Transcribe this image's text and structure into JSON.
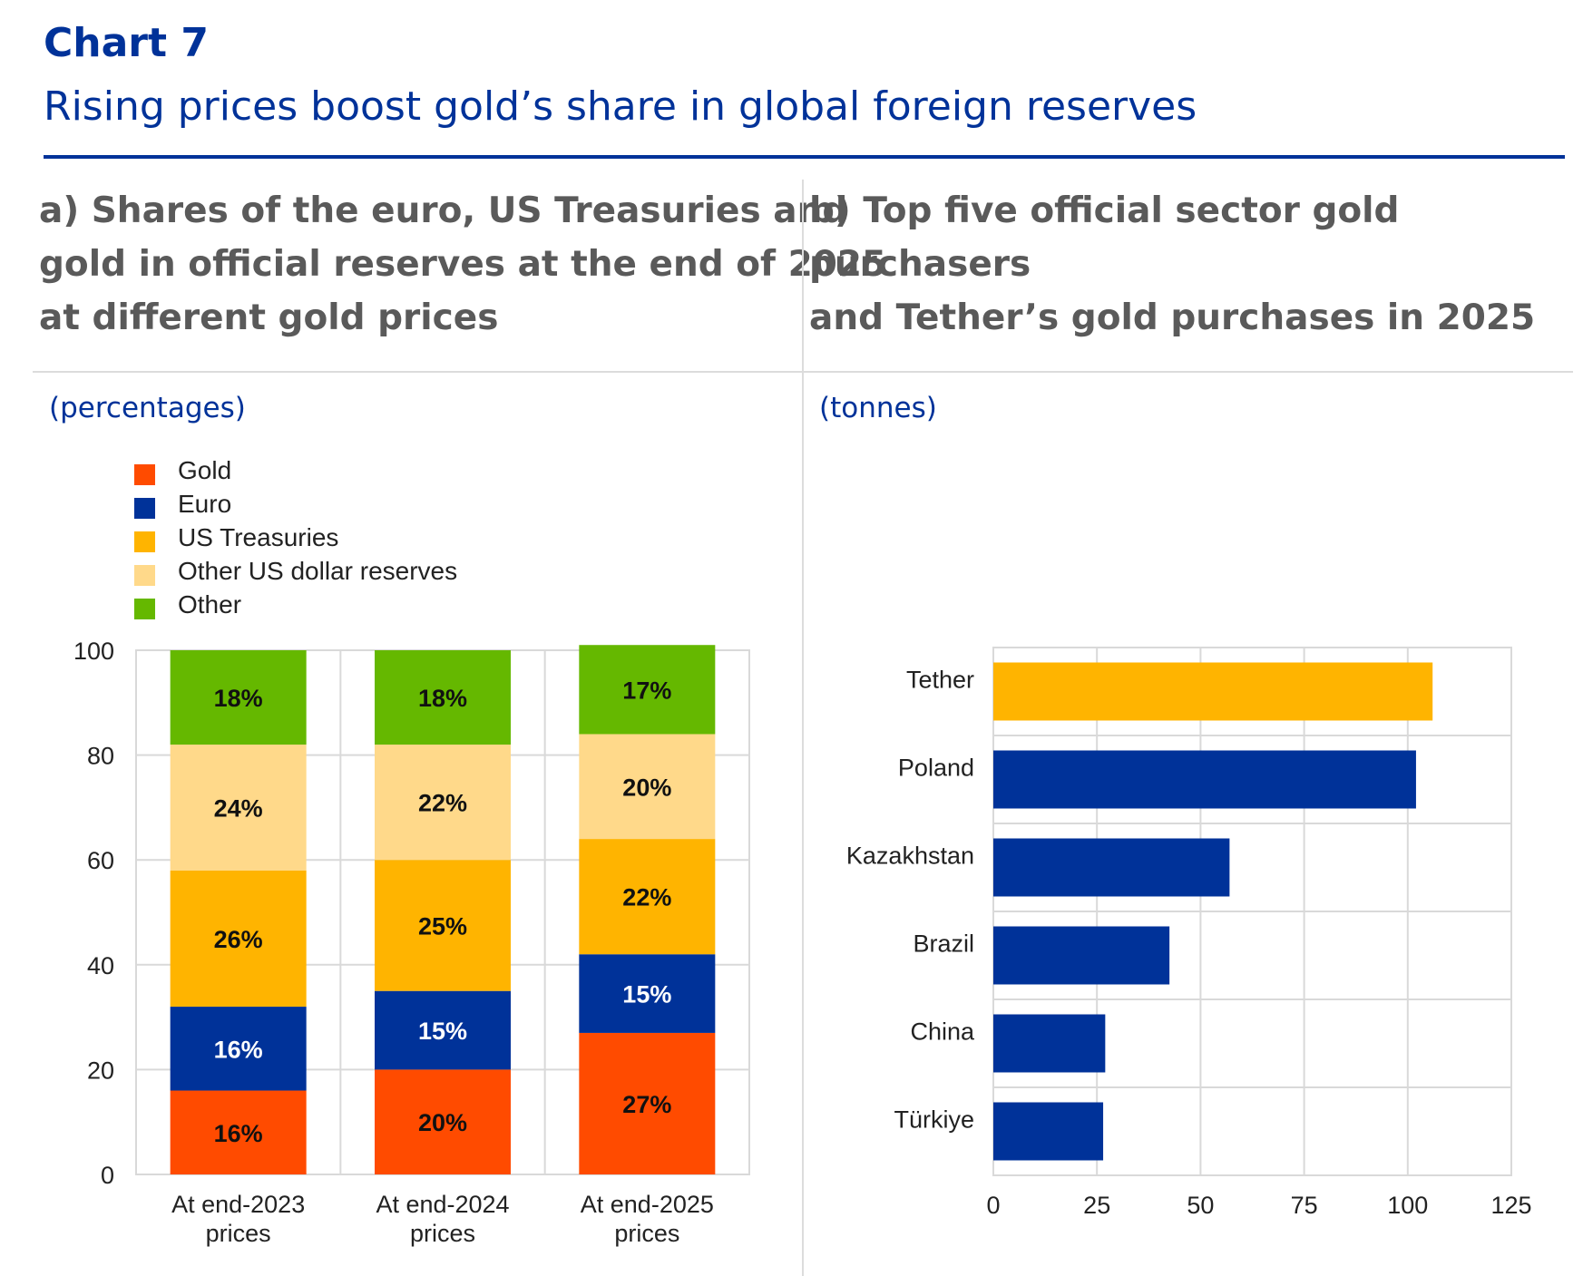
{
  "header": {
    "chart_no": "Chart 7",
    "title": "Rising prices boost gold’s share in global foreign reserves"
  },
  "colors": {
    "brand": "#003299",
    "gold": "#FF4B00",
    "euro": "#003299",
    "us_treasuries": "#FFB400",
    "other_usd": "#FFD98A",
    "other": "#65B800",
    "tether": "#FFB400",
    "country": "#003299"
  },
  "panel_a": {
    "title_lines": [
      "a) Shares of the euro, US Treasuries and",
      "gold in official reserves at the end of 2025",
      "at different gold prices"
    ],
    "unit": "(percentages)"
  },
  "panel_b": {
    "title_lines": [
      "b) Top five official sector gold purchasers",
      "and Tether’s gold purchases in 2025"
    ],
    "unit": "(tonnes)"
  },
  "chart_data": [
    {
      "type": "bar",
      "stacked": true,
      "orientation": "vertical",
      "categories": [
        [
          "At end-2023",
          "prices"
        ],
        [
          "At end-2024",
          "prices"
        ],
        [
          "At end-2025",
          "prices"
        ]
      ],
      "series": [
        {
          "name": "Gold",
          "color": "#FF4B00",
          "values": [
            16,
            20,
            27
          ],
          "labels": [
            "16%",
            "20%",
            "27%"
          ]
        },
        {
          "name": "Euro",
          "color": "#003299",
          "values": [
            16,
            15,
            15
          ],
          "labels": [
            "16%",
            "15%",
            "15%"
          ]
        },
        {
          "name": "US Treasuries",
          "color": "#FFB400",
          "values": [
            26,
            25,
            22
          ],
          "labels": [
            "26%",
            "25%",
            "22%"
          ]
        },
        {
          "name": "Other US dollar reserves",
          "color": "#FFD98A",
          "values": [
            24,
            22,
            20
          ],
          "labels": [
            "24%",
            "22%",
            "20%"
          ]
        },
        {
          "name": "Other",
          "color": "#65B800",
          "values": [
            18,
            18,
            17
          ],
          "labels": [
            "18%",
            "18%",
            "17%"
          ]
        }
      ],
      "ylim": [
        0,
        100
      ],
      "yticks": [
        "0",
        "20",
        "40",
        "60",
        "80",
        "100"
      ],
      "grid": true,
      "legend_position": "top-left"
    },
    {
      "type": "bar",
      "orientation": "horizontal",
      "categories": [
        "Tether",
        "Poland",
        "Kazakhstan",
        "Brazil",
        "China",
        "Türkiye"
      ],
      "values": [
        106,
        102,
        57,
        42.5,
        27,
        26.5
      ],
      "colors": [
        "#FFB400",
        "#003299",
        "#003299",
        "#003299",
        "#003299",
        "#003299"
      ],
      "xlim": [
        0,
        125
      ],
      "xticks": [
        "0",
        "25",
        "50",
        "75",
        "100",
        "125"
      ],
      "grid": true
    }
  ]
}
